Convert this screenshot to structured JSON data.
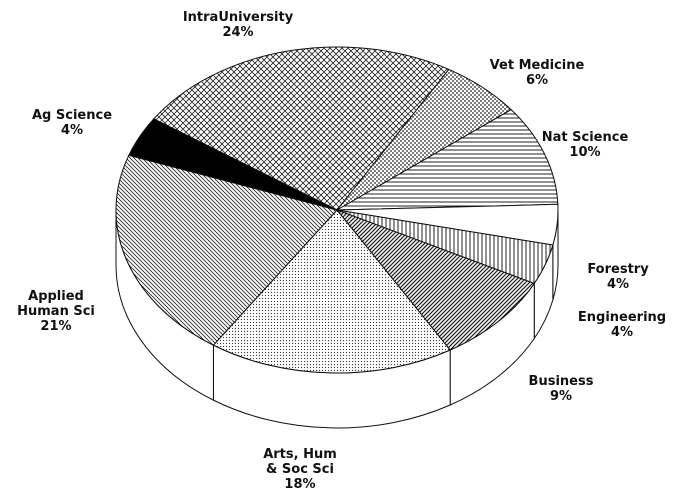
{
  "chart_data": {
    "type": "pie",
    "categories": [
      "IntraUniversity",
      "Vet Medicine",
      "Nat Science",
      "Forestry",
      "Engineering",
      "Business",
      "Arts, Hum\n& Soc Sci",
      "Applied\nHuman Sci",
      "Ag Science"
    ],
    "values": [
      24,
      6,
      10,
      4,
      4,
      9,
      18,
      21,
      4
    ],
    "value_labels": [
      "24%",
      "6%",
      "10%",
      "4%",
      "4%",
      "9%",
      "18%",
      "21%",
      "4%"
    ]
  }
}
